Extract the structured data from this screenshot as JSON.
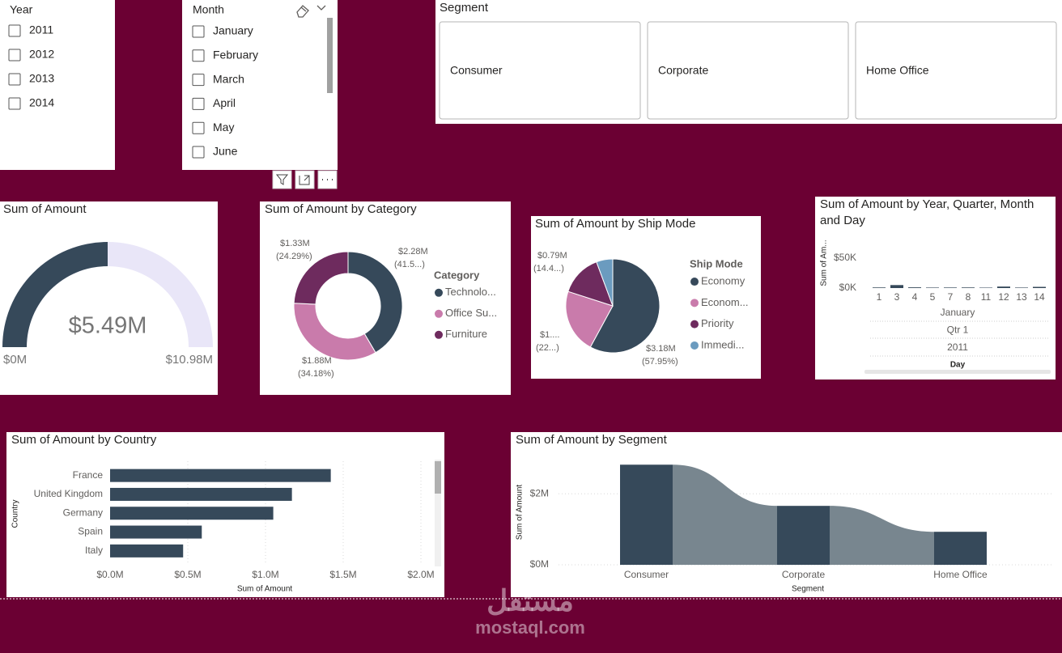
{
  "slicers": {
    "year": {
      "title": "Year",
      "items": [
        "2011",
        "2012",
        "2013",
        "2014"
      ]
    },
    "month": {
      "title": "Month",
      "items": [
        "January",
        "February",
        "March",
        "April",
        "May",
        "June"
      ]
    },
    "segment": {
      "title": "Segment",
      "items": [
        "Consumer",
        "Corporate",
        "Home Office"
      ]
    }
  },
  "chart_data": [
    {
      "type": "gauge",
      "title": "Sum of Amount",
      "values": [
        5.49
      ],
      "value_labels": [
        "$5.49M"
      ],
      "ylim": [
        0,
        10.98
      ],
      "yticks": [
        {
          "value": 0,
          "label": "$0M"
        },
        {
          "value": 10.98,
          "label": "$10.98M"
        }
      ],
      "color": "#36495a",
      "track_color": "#e9e6f8"
    },
    {
      "type": "donut",
      "title": "Sum of Amount by Category",
      "legend_title": "Category",
      "categories": [
        "Technolo...",
        "Office Su...",
        "Furniture"
      ],
      "values": [
        2.28,
        1.88,
        1.33
      ],
      "value_labels": [
        "$2.28M",
        "$1.88M",
        "$1.33M"
      ],
      "percent_labels": [
        "(41.5...)",
        "(34.18%)",
        "(24.29%)"
      ],
      "colors": [
        "#36495a",
        "#c97bab",
        "#6e2b5e"
      ]
    },
    {
      "type": "pie",
      "title": "Sum of Amount by Ship Mode",
      "legend_title": "Ship Mode",
      "categories": [
        "Economy",
        "Econom...",
        "Priority",
        "Immedi..."
      ],
      "values": [
        3.18,
        1.21,
        0.79,
        0.31
      ],
      "value_labels": [
        "$3.18M",
        "$1....",
        "$0.79M",
        null
      ],
      "percent_labels": [
        "(57.95%)",
        "(22...)",
        "(14.4...)",
        null
      ],
      "colors": [
        "#36495a",
        "#c97bab",
        "#6e2b5e",
        "#6b9bbf"
      ]
    },
    {
      "type": "column",
      "title": "Sum of Amount by Year, Quarter, Month and Day",
      "ylabel": "Sum of Am...",
      "xlabel": "Day",
      "categories": [
        "1",
        "3",
        "4",
        "5",
        "7",
        "8",
        "11",
        "12",
        "13",
        "14"
      ],
      "values": [
        1000,
        5000,
        1200,
        800,
        900,
        1000,
        700,
        2500,
        800,
        2000
      ],
      "hierarchy_labels": [
        "January",
        "Qtr 1",
        "2011"
      ],
      "ylim": [
        0,
        75000
      ],
      "yticks": [
        {
          "value": 0,
          "label": "$0K"
        },
        {
          "value": 50000,
          "label": "$50K"
        }
      ],
      "color": "#36495a"
    },
    {
      "type": "hbar",
      "title": "Sum of Amount by Country",
      "ylabel": "Country",
      "xlabel": "Sum of Amount",
      "categories": [
        "France",
        "United Kingdom",
        "Germany",
        "Spain",
        "Italy"
      ],
      "values": [
        1.42,
        1.17,
        1.05,
        0.59,
        0.47
      ],
      "xlim": [
        0,
        2.05
      ],
      "xticks": [
        {
          "value": 0,
          "label": "$0.0M"
        },
        {
          "value": 0.5,
          "label": "$0.5M"
        },
        {
          "value": 1,
          "label": "$1.0M"
        },
        {
          "value": 1.5,
          "label": "$1.5M"
        },
        {
          "value": 2,
          "label": "$2.0M"
        }
      ],
      "grid": true,
      "color": "#36495a"
    },
    {
      "type": "ribbon",
      "title": "Sum of Amount by Segment",
      "ylabel": "Sum of Amount",
      "xlabel": "Segment",
      "categories": [
        "Consumer",
        "Corporate",
        "Home Office"
      ],
      "values": [
        2.82,
        1.66,
        0.93
      ],
      "ylim": [
        0,
        3.1
      ],
      "yticks": [
        {
          "value": 0,
          "label": "$0M"
        },
        {
          "value": 2,
          "label": "$2M"
        }
      ],
      "grid": true,
      "color": "#36495a",
      "ribbon_color": "#78868f"
    }
  ],
  "watermark": {
    "arabic": "مستقل",
    "latin": "mostaql.com"
  }
}
